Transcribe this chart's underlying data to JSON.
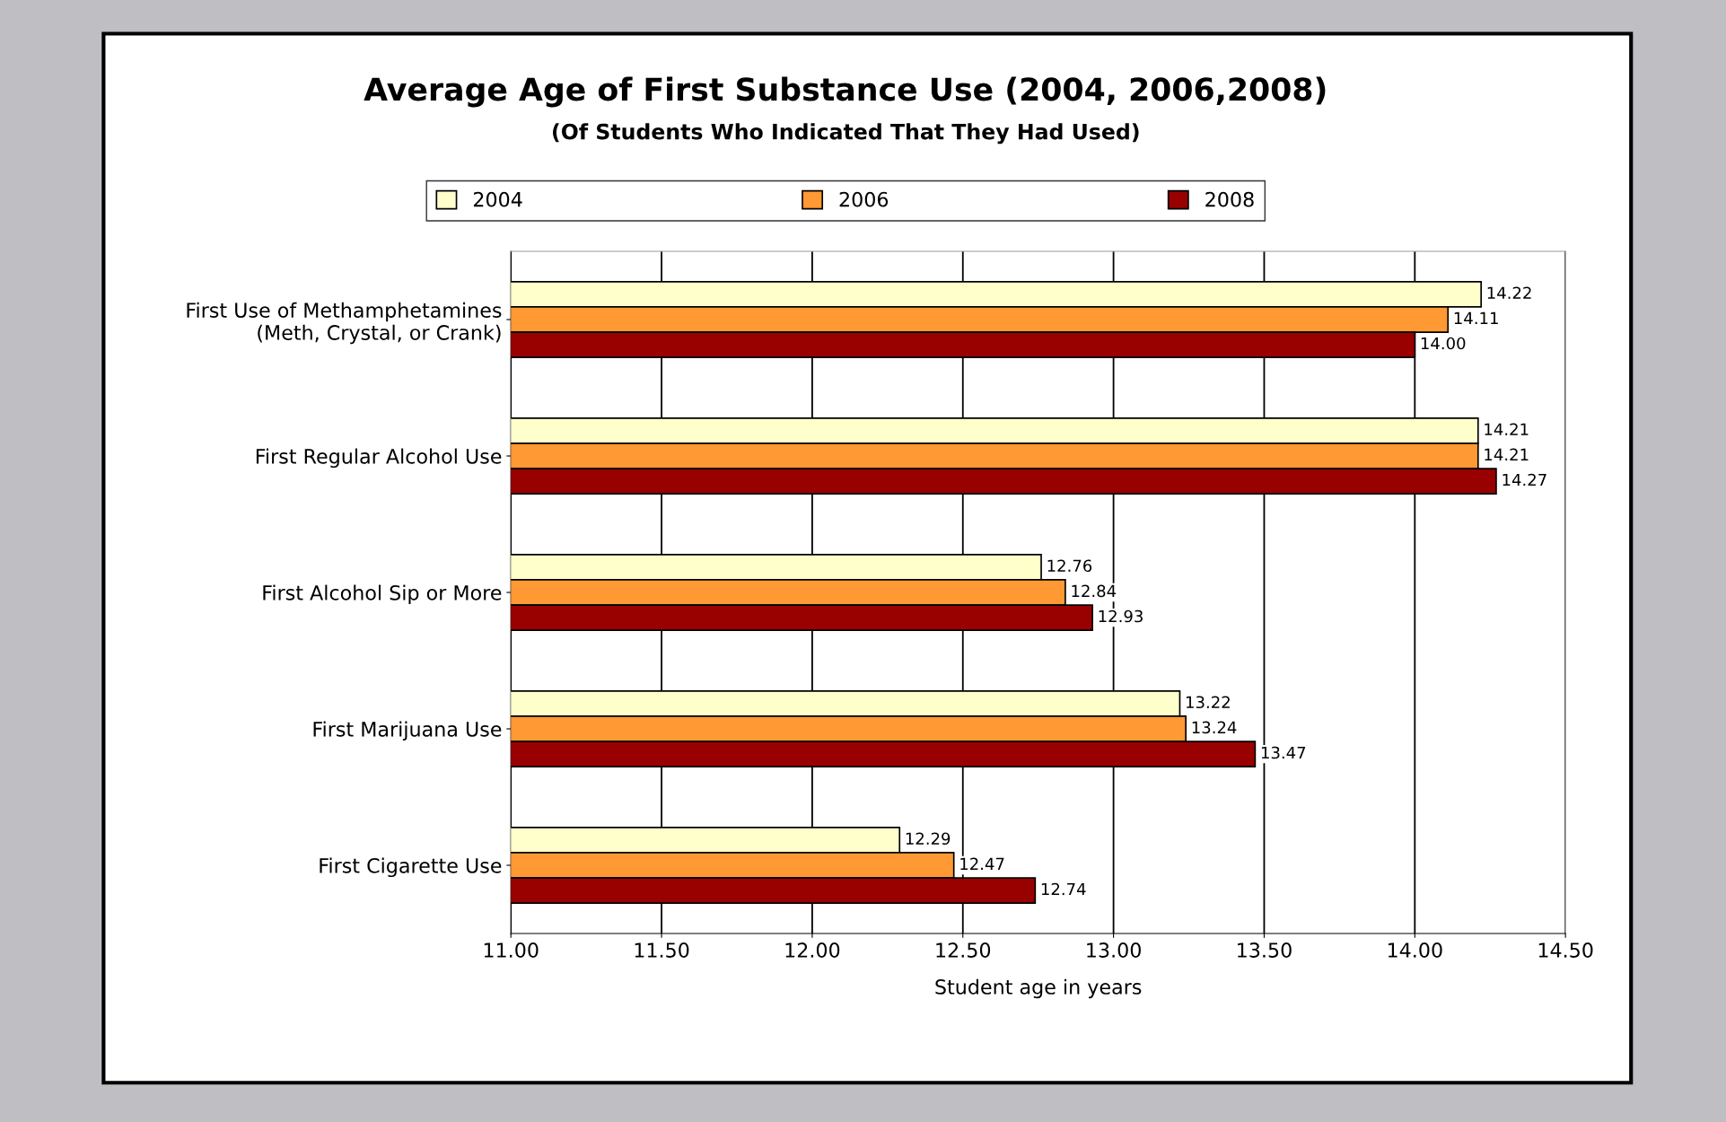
{
  "chart_data": {
    "type": "bar",
    "orientation": "horizontal",
    "title": "Average Age of First Substance Use (2004, 2006,2008)",
    "subtitle": "(Of Students Who Indicated That They Had Used)",
    "xlabel": "Student age in years",
    "categories": [
      "First Use of Methamphetamines\n(Meth, Crystal, or Crank)",
      "First Regular Alcohol Use",
      "First Alcohol Sip or More",
      "First Marijuana Use",
      "First Cigarette Use"
    ],
    "series": [
      {
        "name": "2004",
        "color": "#ffffcc",
        "values": [
          14.22,
          14.21,
          12.76,
          13.22,
          12.29
        ],
        "value_labels": [
          "14.22",
          "14.21",
          "12.76",
          "13.22",
          "12.29"
        ]
      },
      {
        "name": "2006",
        "color": "#ff9933",
        "values": [
          14.11,
          14.21,
          12.84,
          13.24,
          12.47
        ],
        "value_labels": [
          "14.11",
          "14.21",
          "12.84",
          "13.24",
          "12.47"
        ]
      },
      {
        "name": "2008",
        "color": "#990000",
        "values": [
          14.0,
          14.27,
          12.93,
          13.47,
          12.74
        ],
        "value_labels": [
          "14.00",
          "14.27",
          "12.93",
          "13.47",
          "12.74"
        ]
      }
    ],
    "xlim": [
      11,
      14.5
    ],
    "xticks": [
      {
        "value": 11,
        "label": "11.00"
      },
      {
        "value": 11.5,
        "label": "11.50"
      },
      {
        "value": 12,
        "label": "12.00"
      },
      {
        "value": 12.5,
        "label": "12.50"
      },
      {
        "value": 13,
        "label": "13.00"
      },
      {
        "value": 13.5,
        "label": "13.50"
      },
      {
        "value": 14,
        "label": "14.00"
      },
      {
        "value": 14.5,
        "label": "14.50"
      }
    ],
    "grid": "x",
    "legend": "top"
  }
}
